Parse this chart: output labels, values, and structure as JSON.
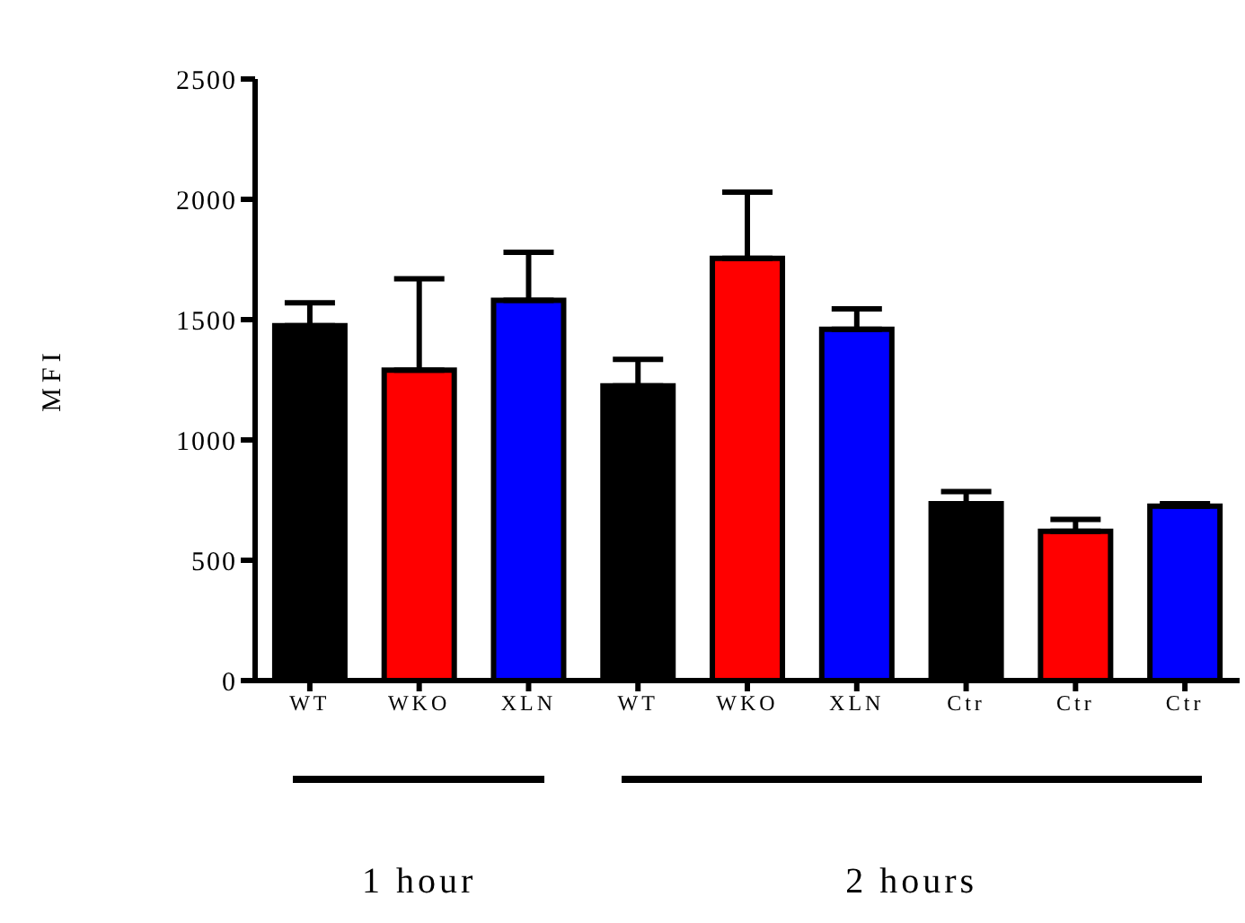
{
  "chart_data": {
    "type": "bar",
    "ylabel": "MFI",
    "categories": [
      "WT",
      "WKO",
      "XLN",
      "WT",
      "WKO",
      "XLN",
      "Ctr",
      "Ctr",
      "Ctr"
    ],
    "values": [
      1475,
      1290,
      1580,
      1225,
      1755,
      1460,
      735,
      620,
      725
    ],
    "colors": [
      "#000000",
      "#ff0000",
      "#0000ff",
      "#000000",
      "#ff0000",
      "#0000ff",
      "#000000",
      "#ff0000",
      "#0000ff"
    ],
    "errors": [
      [
        1475,
        1570
      ],
      [
        1290,
        1670
      ],
      [
        1580,
        1780
      ],
      [
        1225,
        1335
      ],
      [
        1755,
        2030
      ],
      [
        1460,
        1545
      ],
      [
        735,
        785
      ],
      [
        620,
        670
      ],
      [
        725,
        735
      ]
    ],
    "ylim": [
      0,
      2500
    ],
    "yticks": [
      0,
      500,
      1000,
      1500,
      2000,
      2500
    ],
    "annotations": [
      "1 hour",
      "2 hours"
    ],
    "grid": false,
    "legend": false
  }
}
